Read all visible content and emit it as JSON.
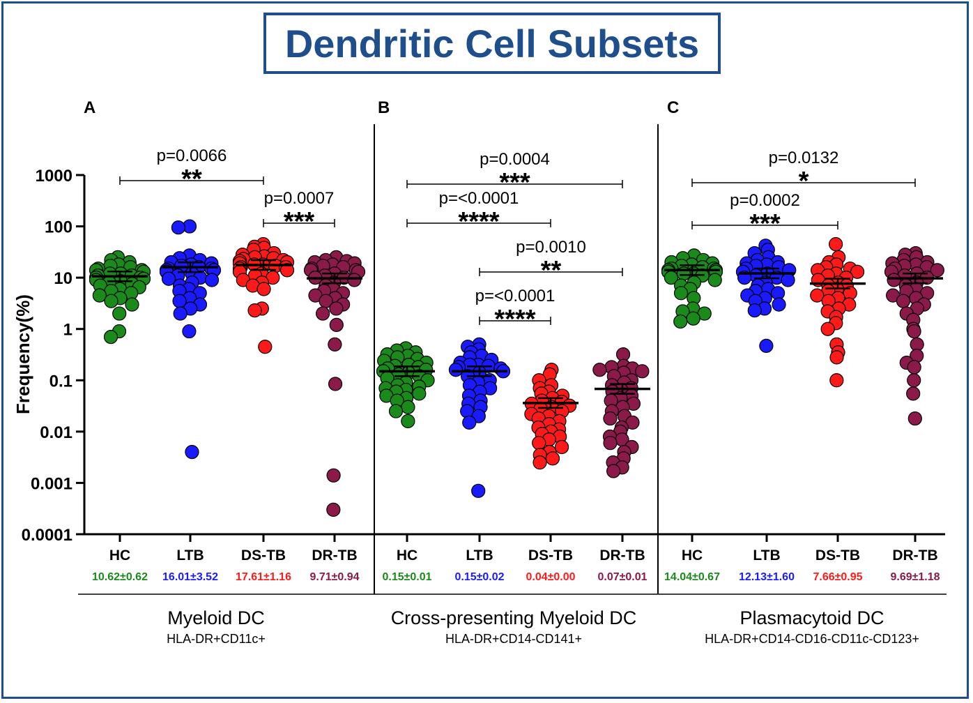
{
  "title": "Dendritic Cell Subsets",
  "y_axis_label": "Frequency(%)",
  "y_ticks": [
    "1000",
    "100",
    "10",
    "1",
    "0.1",
    "0.01",
    "0.001",
    "0.0001"
  ],
  "colors": {
    "HC": "#1a8a1a",
    "LTB": "#1a1aff",
    "DS-TB": "#ff1a1a",
    "DR-TB": "#8b1a4a",
    "frame": "#1f4e8c"
  },
  "chart_data": [
    {
      "type": "scatter",
      "panel_label": "A",
      "subset": "Myeloid DC",
      "marker": "HLA-DR+CD11c+",
      "yscale": "log",
      "ylim": [
        0.0001,
        1000
      ],
      "categories": [
        "HC",
        "LTB",
        "DS-TB",
        "DR-TB"
      ],
      "summaries": [
        "10.62±0.62",
        "16.01±3.52",
        "17.61±1.16",
        "9.71±0.94"
      ],
      "means": [
        10.62,
        16.01,
        17.61,
        9.71
      ],
      "series": [
        {
          "name": "HC",
          "values": [
            25,
            22,
            20,
            18,
            17,
            16,
            15,
            14,
            14,
            13,
            12,
            12,
            11,
            11,
            10,
            10,
            9.5,
            9,
            8.5,
            8,
            7.5,
            7,
            6.5,
            6,
            5.5,
            5,
            4.5,
            4,
            3.5,
            3,
            2,
            0.9,
            0.7
          ]
        },
        {
          "name": "LTB",
          "values": [
            100,
            95,
            27,
            24,
            22,
            20,
            19,
            18,
            17,
            16,
            15,
            15,
            14,
            14,
            13,
            12,
            11,
            10,
            9.5,
            9,
            8,
            7,
            6,
            5.5,
            5,
            4,
            3.5,
            3,
            2.5,
            2,
            0.9,
            0.004
          ]
        },
        {
          "name": "DS-TB",
          "values": [
            45,
            40,
            38,
            35,
            30,
            28,
            26,
            25,
            24,
            23,
            22,
            21,
            20,
            19,
            18,
            18,
            17,
            16,
            16,
            15,
            14,
            13,
            12,
            11,
            10,
            9,
            8,
            7,
            6,
            2.5,
            2.3,
            0.45
          ]
        },
        {
          "name": "DR-TB",
          "values": [
            25,
            22,
            21,
            20,
            19,
            18,
            17,
            16,
            15,
            14,
            14,
            13,
            12,
            11,
            10,
            10,
            9,
            8,
            7,
            6,
            5.5,
            5,
            4.5,
            4,
            3.5,
            3,
            2.5,
            2,
            1.2,
            0.5,
            0.085,
            0.0014,
            0.0003
          ]
        }
      ],
      "brackets": [
        {
          "from": "HC",
          "to": "DS-TB",
          "p": "p=0.0066",
          "stars": "**"
        },
        {
          "from": "DS-TB",
          "to": "DR-TB",
          "p": "p=0.0007",
          "stars": "***"
        }
      ]
    },
    {
      "type": "scatter",
      "panel_label": "B",
      "subset": "Cross-presenting Myeloid DC",
      "marker": "HLA-DR+CD14-CD141+",
      "yscale": "log",
      "ylim": [
        0.0001,
        1000
      ],
      "categories": [
        "HC",
        "LTB",
        "DS-TB",
        "DR-TB"
      ],
      "summaries": [
        "0.15±0.01",
        "0.15±0.02",
        "0.04±0.00",
        "0.07±0.01"
      ],
      "means": [
        0.15,
        0.15,
        0.036,
        0.068
      ],
      "series": [
        {
          "name": "HC",
          "values": [
            0.42,
            0.38,
            0.35,
            0.32,
            0.3,
            0.28,
            0.26,
            0.24,
            0.22,
            0.2,
            0.19,
            0.18,
            0.17,
            0.16,
            0.15,
            0.14,
            0.13,
            0.12,
            0.11,
            0.1,
            0.09,
            0.08,
            0.075,
            0.07,
            0.065,
            0.06,
            0.055,
            0.05,
            0.045,
            0.04,
            0.03,
            0.025,
            0.016
          ]
        },
        {
          "name": "LTB",
          "values": [
            0.5,
            0.45,
            0.4,
            0.35,
            0.3,
            0.28,
            0.25,
            0.22,
            0.2,
            0.2,
            0.19,
            0.18,
            0.17,
            0.16,
            0.15,
            0.14,
            0.12,
            0.1,
            0.09,
            0.08,
            0.07,
            0.06,
            0.05,
            0.04,
            0.035,
            0.03,
            0.025,
            0.02,
            0.015,
            0.0007
          ]
        },
        {
          "name": "DS-TB",
          "values": [
            0.16,
            0.13,
            0.1,
            0.08,
            0.07,
            0.06,
            0.055,
            0.05,
            0.045,
            0.04,
            0.038,
            0.035,
            0.032,
            0.03,
            0.028,
            0.025,
            0.022,
            0.02,
            0.018,
            0.016,
            0.014,
            0.012,
            0.011,
            0.01,
            0.009,
            0.008,
            0.007,
            0.006,
            0.005,
            0.004,
            0.0035,
            0.003,
            0.0025
          ]
        },
        {
          "name": "DR-TB",
          "values": [
            0.32,
            0.19,
            0.18,
            0.17,
            0.16,
            0.15,
            0.14,
            0.12,
            0.1,
            0.09,
            0.08,
            0.07,
            0.065,
            0.06,
            0.05,
            0.045,
            0.04,
            0.035,
            0.03,
            0.025,
            0.02,
            0.018,
            0.015,
            0.012,
            0.01,
            0.008,
            0.007,
            0.006,
            0.005,
            0.004,
            0.003,
            0.0025,
            0.002,
            0.0017
          ]
        }
      ],
      "brackets": [
        {
          "from": "HC",
          "to": "DR-TB",
          "p": "p=0.0004",
          "stars": "***"
        },
        {
          "from": "HC",
          "to": "DS-TB",
          "p": "p=<0.0001",
          "stars": "****"
        },
        {
          "from": "LTB",
          "to": "DR-TB",
          "p": "p=0.0010",
          "stars": "**"
        },
        {
          "from": "LTB",
          "to": "DS-TB",
          "p": "p=<0.0001",
          "stars": "****"
        }
      ]
    },
    {
      "type": "scatter",
      "panel_label": "C",
      "subset": "Plasmacytoid DC",
      "marker": "HLA-DR+CD14-CD16-CD11c-CD123+",
      "yscale": "log",
      "ylim": [
        0.0001,
        1000
      ],
      "categories": [
        "HC",
        "LTB",
        "DS-TB",
        "DR-TB"
      ],
      "summaries": [
        "14.04±0.67",
        "12.13±1.60",
        "7.66±0.95",
        "9.69±1.18"
      ],
      "means": [
        14.04,
        12.13,
        7.66,
        9.69
      ],
      "series": [
        {
          "name": "HC",
          "values": [
            27,
            24,
            22,
            20,
            19,
            18,
            17,
            16,
            15,
            15,
            14,
            14,
            13,
            13,
            12,
            12,
            11,
            10,
            9,
            8,
            7,
            6,
            5,
            4,
            2.5,
            2.2,
            2,
            1.6,
            1.4
          ]
        },
        {
          "name": "LTB",
          "values": [
            42,
            35,
            30,
            25,
            22,
            20,
            19,
            18,
            17,
            16,
            15,
            14,
            13,
            12,
            11,
            10,
            10,
            9,
            8,
            7,
            6,
            5.5,
            5,
            4.5,
            4,
            3.5,
            3,
            2.5,
            2.3,
            0.47
          ]
        },
        {
          "name": "DS-TB",
          "values": [
            45,
            25,
            20,
            18,
            16,
            15,
            14,
            13,
            12,
            11,
            10,
            9,
            8,
            7,
            7,
            6,
            5.5,
            5,
            4.5,
            4,
            3.5,
            3,
            2.5,
            2.2,
            1.7,
            1.3,
            1,
            0.5,
            0.35,
            0.28,
            0.1
          ]
        },
        {
          "name": "DR-TB",
          "values": [
            30,
            28,
            25,
            22,
            20,
            19,
            18,
            17,
            16,
            15,
            14,
            13,
            12,
            11,
            10,
            9,
            8,
            7,
            6,
            5.5,
            5,
            4.5,
            4,
            3.5,
            3,
            2.5,
            2,
            1.5,
            1,
            0.9,
            0.5,
            0.3,
            0.22,
            0.18,
            0.1,
            0.055,
            0.018
          ]
        }
      ],
      "brackets": [
        {
          "from": "HC",
          "to": "DR-TB",
          "p": "p=0.0132",
          "stars": "*"
        },
        {
          "from": "HC",
          "to": "DS-TB",
          "p": "p=0.0002",
          "stars": "***"
        }
      ]
    }
  ]
}
